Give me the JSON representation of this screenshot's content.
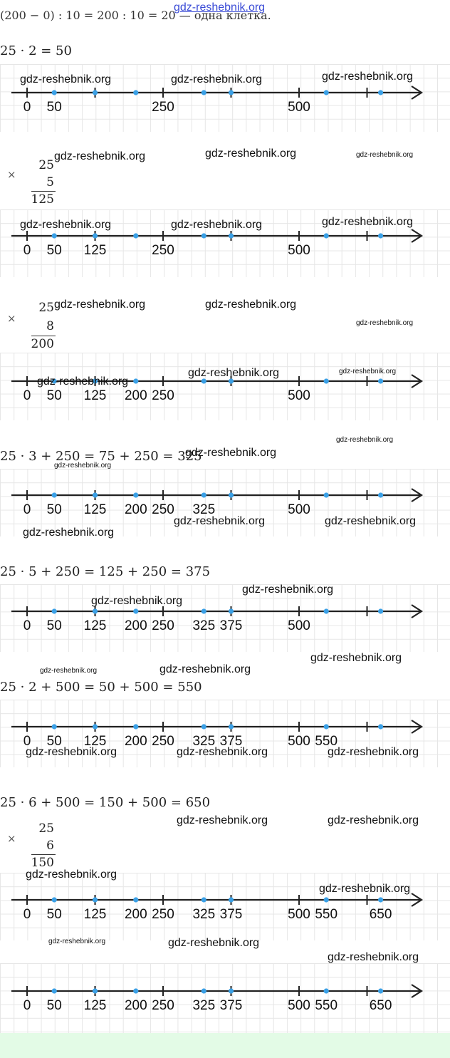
{
  "header": {
    "site_link": "gdz-reshebnik.org",
    "cut_line": "(200 − 0) : 10 = 200 : 10 = 20 — одна клетка."
  },
  "watermark": "gdz-reshebnik.org",
  "colors": {
    "axis": "#222222",
    "point": "#3aa0e6",
    "grid": "#e6e6e6",
    "bottom_band": "#e3fbe6",
    "link": "#3a4bd6"
  },
  "steps": [
    {
      "equation": "25 · 2 = 50",
      "labels": [
        "0",
        "50",
        "250",
        "500"
      ]
    },
    {
      "mult": {
        "top": "25",
        "factor": "5",
        "result": "125",
        "sign": "×"
      },
      "labels": [
        "0",
        "50",
        "125",
        "250",
        "500"
      ]
    },
    {
      "mult": {
        "top": "25",
        "factor": "8",
        "result": "200",
        "sign": "×"
      },
      "labels": [
        "0",
        "50",
        "125",
        "200",
        "250",
        "500"
      ]
    },
    {
      "equation": "25 · 3 + 250 = 75 + 250 = 325",
      "labels": [
        "0",
        "50",
        "125",
        "200",
        "250",
        "325",
        "500"
      ]
    },
    {
      "equation": "25 · 5 + 250 = 125 + 250 = 375",
      "labels": [
        "0",
        "50",
        "125",
        "200",
        "250",
        "325",
        "375",
        "500"
      ]
    },
    {
      "equation": "25 · 2 + 500 = 50 + 500 = 550",
      "labels": [
        "0",
        "50",
        "125",
        "200",
        "250",
        "325",
        "375",
        "500",
        "550"
      ]
    },
    {
      "equation": "25 · 6 + 500 = 150 + 500 = 650",
      "mult": {
        "top": "25",
        "factor": "6",
        "result": "150",
        "sign": "×"
      },
      "labels": [
        "0",
        "50",
        "125",
        "200",
        "250",
        "325",
        "375",
        "500",
        "550",
        "650"
      ]
    },
    {
      "labels": [
        "0",
        "50",
        "125",
        "200",
        "250",
        "325",
        "375",
        "500",
        "550",
        "650"
      ]
    }
  ]
}
